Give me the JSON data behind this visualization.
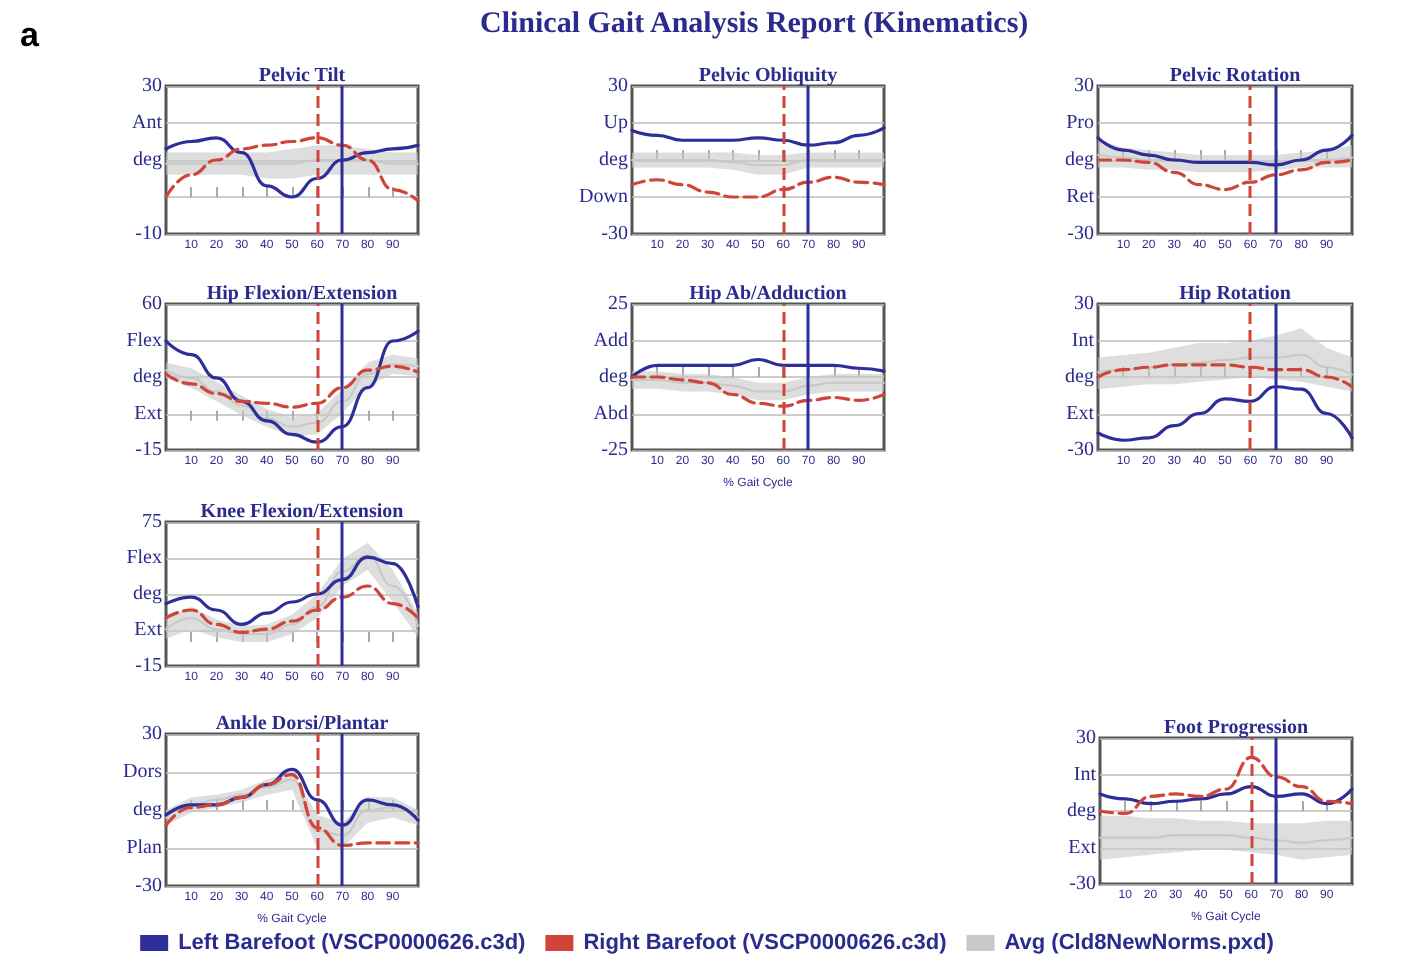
{
  "chart_data": [
    {
      "type": "line",
      "title": "Pelvic Tilt",
      "annotations": [
        "a",
        "Clinical Gait Analysis Report (Kinematics)"
      ],
      "x": [
        0,
        10,
        20,
        30,
        40,
        50,
        60,
        70,
        80,
        90,
        100
      ],
      "xlim": [
        0,
        100
      ],
      "xticks": [
        10,
        20,
        30,
        40,
        50,
        60,
        70,
        80,
        90
      ],
      "ylim": [
        -10,
        30
      ],
      "yticks": [
        -10,
        {
          "value": 0,
          "label": null
        },
        {
          "value": 10,
          "label": "deg"
        },
        {
          "value": 20,
          "label": "Ant"
        },
        30
      ],
      "grid": "y",
      "ref_lines": [
        {
          "axis": "x",
          "value": 60,
          "color": "#d0453a",
          "line_style": "dashed"
        },
        {
          "axis": "x",
          "value": 70,
          "color": "#2e2e9a",
          "line_style": "solid"
        }
      ],
      "series": [
        {
          "color": "#c8c8c8",
          "values": [
            9,
            9,
            9,
            9,
            9,
            9,
            10,
            10,
            10,
            9,
            9
          ],
          "lower": [
            6,
            6,
            6,
            6,
            5,
            5,
            6,
            6,
            6,
            6,
            6
          ],
          "upper": [
            12,
            12,
            12,
            12,
            12,
            13,
            14,
            14,
            13,
            12,
            12
          ]
        },
        {
          "color": "#2e2e9a",
          "line_style": "solid",
          "values": [
            13,
            15,
            16,
            12,
            3,
            0,
            5,
            10,
            12,
            13,
            14
          ]
        },
        {
          "color": "#d0453a",
          "line_style": "dashed",
          "values": [
            0,
            6,
            10,
            13,
            14,
            15,
            16,
            14,
            10,
            2,
            -1
          ]
        }
      ]
    },
    {
      "type": "line",
      "title": "Pelvic Obliquity",
      "x": [
        0,
        10,
        20,
        30,
        40,
        50,
        60,
        70,
        80,
        90,
        100
      ],
      "xlim": [
        0,
        100
      ],
      "xticks": [
        10,
        20,
        30,
        40,
        50,
        60,
        70,
        80,
        90
      ],
      "ylim": [
        -30,
        30
      ],
      "yticks": [
        -30,
        {
          "value": -15,
          "label": "Down"
        },
        {
          "value": 0,
          "label": "deg"
        },
        {
          "value": 15,
          "label": "Up"
        },
        30
      ],
      "grid": "y",
      "ref_lines": [
        {
          "axis": "x",
          "value": 60,
          "color": "#d0453a",
          "line_style": "dashed"
        },
        {
          "axis": "x",
          "value": 70,
          "color": "#2e2e9a",
          "line_style": "solid"
        }
      ],
      "series": [
        {
          "color": "#c8c8c8",
          "values": [
            0,
            0,
            0,
            0,
            -1,
            -2,
            -2,
            0,
            0,
            0,
            0
          ],
          "lower": [
            -3,
            -3,
            -3,
            -3,
            -4,
            -6,
            -6,
            -3,
            -3,
            -3,
            -3
          ],
          "upper": [
            3,
            3,
            3,
            3,
            3,
            2,
            2,
            3,
            3,
            3,
            3
          ]
        },
        {
          "color": "#2e2e9a",
          "line_style": "solid",
          "values": [
            12,
            10,
            8,
            8,
            8,
            9,
            8,
            6,
            7,
            10,
            13
          ]
        },
        {
          "color": "#d0453a",
          "line_style": "dashed",
          "values": [
            -10,
            -8,
            -10,
            -13,
            -15,
            -15,
            -12,
            -9,
            -7,
            -9,
            -10
          ]
        }
      ]
    },
    {
      "type": "line",
      "title": "Pelvic Rotation",
      "x": [
        0,
        10,
        20,
        30,
        40,
        50,
        60,
        70,
        80,
        90,
        100
      ],
      "xlim": [
        0,
        100
      ],
      "xticks": [
        10,
        20,
        30,
        40,
        50,
        60,
        70,
        80,
        90
      ],
      "ylim": [
        -30,
        30
      ],
      "yticks": [
        -30,
        {
          "value": -15,
          "label": "Ret"
        },
        {
          "value": 0,
          "label": "deg"
        },
        {
          "value": 15,
          "label": "Pro"
        },
        30
      ],
      "grid": "y",
      "ref_lines": [
        {
          "axis": "x",
          "value": 60,
          "color": "#d0453a",
          "line_style": "dashed"
        },
        {
          "axis": "x",
          "value": 70,
          "color": "#2e2e9a",
          "line_style": "solid"
        }
      ],
      "series": [
        {
          "color": "#c8c8c8",
          "values": [
            2,
            1,
            0,
            0,
            -1,
            -1,
            -1,
            -1,
            0,
            0,
            1
          ],
          "lower": [
            -3,
            -3,
            -4,
            -4,
            -5,
            -5,
            -5,
            -4,
            -3,
            -3,
            -3
          ],
          "upper": [
            8,
            5,
            4,
            3,
            2,
            2,
            2,
            2,
            3,
            4,
            6
          ]
        },
        {
          "color": "#2e2e9a",
          "line_style": "solid",
          "values": [
            9,
            4,
            2,
            0,
            -1,
            -1,
            -1,
            -2,
            0,
            4,
            10
          ]
        },
        {
          "color": "#d0453a",
          "line_style": "dashed",
          "values": [
            0,
            0,
            -1,
            -5,
            -10,
            -12,
            -9,
            -6,
            -4,
            -1,
            0
          ]
        }
      ]
    },
    {
      "type": "line",
      "title": "Hip Flexion/Extension",
      "x": [
        0,
        10,
        20,
        30,
        40,
        50,
        60,
        70,
        80,
        90,
        100
      ],
      "xlim": [
        0,
        100
      ],
      "xticks": [
        10,
        20,
        30,
        40,
        50,
        60,
        70,
        80,
        90
      ],
      "ylim": [
        -15,
        60
      ],
      "yticks": [
        -15,
        {
          "value": 3.75,
          "label": "Ext"
        },
        {
          "value": 22.5,
          "label": "deg"
        },
        {
          "value": 41.25,
          "label": "Flex"
        },
        60
      ],
      "grid": "y",
      "ref_lines": [
        {
          "axis": "x",
          "value": 60,
          "color": "#d0453a",
          "line_style": "dashed"
        },
        {
          "axis": "x",
          "value": 70,
          "color": "#2e2e9a",
          "line_style": "solid"
        }
      ],
      "series": [
        {
          "color": "#c8c8c8",
          "values": [
            26,
            22,
            15,
            8,
            1,
            -3,
            -1,
            10,
            24,
            29,
            28
          ],
          "lower": [
            22,
            17,
            10,
            3,
            -3,
            -8,
            -7,
            4,
            18,
            24,
            23
          ],
          "upper": [
            30,
            27,
            20,
            13,
            6,
            2,
            4,
            16,
            30,
            34,
            32
          ]
        },
        {
          "color": "#2e2e9a",
          "line_style": "solid",
          "values": [
            41,
            34,
            22,
            10,
            0,
            -7,
            -11,
            -3,
            17,
            41,
            46
          ]
        },
        {
          "color": "#d0453a",
          "line_style": "dashed",
          "values": [
            24,
            19,
            14,
            10,
            9,
            7,
            9,
            17,
            26,
            28,
            25
          ]
        }
      ]
    },
    {
      "type": "line",
      "title": "Hip Ab/Adduction",
      "xlabel": "% Gait Cycle",
      "x": [
        0,
        10,
        20,
        30,
        40,
        50,
        60,
        70,
        80,
        90,
        100
      ],
      "xlim": [
        0,
        100
      ],
      "xticks": [
        10,
        20,
        30,
        40,
        50,
        60,
        70,
        80,
        90
      ],
      "ylim": [
        -25,
        25
      ],
      "yticks": [
        -25,
        {
          "value": -12.5,
          "label": "Abd"
        },
        {
          "value": 0,
          "label": "deg"
        },
        {
          "value": 12.5,
          "label": "Add"
        },
        25
      ],
      "grid": "y",
      "ref_lines": [
        {
          "axis": "x",
          "value": 60,
          "color": "#d0453a",
          "line_style": "dashed"
        },
        {
          "axis": "x",
          "value": 70,
          "color": "#2e2e9a",
          "line_style": "solid"
        }
      ],
      "series": [
        {
          "color": "#c8c8c8",
          "values": [
            -1,
            -1,
            -2,
            -2,
            -3,
            -5,
            -5,
            -3,
            -2,
            -2,
            -2
          ],
          "lower": [
            -4,
            -4,
            -5,
            -5,
            -6,
            -8,
            -8,
            -6,
            -5,
            -5,
            -5
          ],
          "upper": [
            2,
            2,
            1,
            1,
            0,
            -2,
            -2,
            0,
            1,
            1,
            1
          ]
        },
        {
          "color": "#2e2e9a",
          "line_style": "solid",
          "values": [
            0,
            4,
            4,
            4,
            4,
            6,
            4,
            4,
            4,
            3,
            2
          ]
        },
        {
          "color": "#d0453a",
          "line_style": "dashed",
          "values": [
            0,
            0,
            -1,
            -2,
            -6,
            -9,
            -10,
            -8,
            -7,
            -8,
            -6
          ]
        }
      ]
    },
    {
      "type": "line",
      "title": "Hip Rotation",
      "x": [
        0,
        10,
        20,
        30,
        40,
        50,
        60,
        70,
        80,
        90,
        100
      ],
      "xlim": [
        0,
        100
      ],
      "xticks": [
        10,
        20,
        30,
        40,
        50,
        60,
        70,
        80,
        90
      ],
      "ylim": [
        -30,
        30
      ],
      "yticks": [
        -30,
        {
          "value": -15,
          "label": "Ext"
        },
        {
          "value": 0,
          "label": "deg"
        },
        {
          "value": 15,
          "label": "Int"
        },
        30
      ],
      "grid": "y",
      "ref_lines": [
        {
          "axis": "x",
          "value": 60,
          "color": "#d0453a",
          "line_style": "dashed"
        },
        {
          "axis": "x",
          "value": 70,
          "color": "#2e2e9a",
          "line_style": "solid"
        }
      ],
      "series": [
        {
          "color": "#c8c8c8",
          "values": [
            2,
            3,
            4,
            5,
            6,
            7,
            8,
            8,
            9,
            4,
            1
          ],
          "lower": [
            -5,
            -4,
            -3,
            -3,
            -2,
            -1,
            0,
            -1,
            -2,
            -4,
            -6
          ],
          "upper": [
            8,
            9,
            10,
            12,
            14,
            14,
            15,
            17,
            20,
            12,
            8
          ]
        },
        {
          "color": "#2e2e9a",
          "line_style": "solid",
          "values": [
            -23,
            -26,
            -25,
            -20,
            -15,
            -9,
            -10,
            -4,
            -5,
            -15,
            -25
          ]
        },
        {
          "color": "#d0453a",
          "line_style": "dashed",
          "values": [
            0,
            3,
            4,
            5,
            5,
            5,
            4,
            3,
            3,
            0,
            -4
          ]
        }
      ]
    },
    {
      "type": "line",
      "title": "Knee Flexion/Extension",
      "x": [
        0,
        10,
        20,
        30,
        40,
        50,
        60,
        70,
        80,
        90,
        100
      ],
      "xlim": [
        0,
        100
      ],
      "xticks": [
        10,
        20,
        30,
        40,
        50,
        60,
        70,
        80,
        90
      ],
      "ylim": [
        -15,
        75
      ],
      "yticks": [
        -15,
        {
          "value": 7.5,
          "label": "Ext"
        },
        {
          "value": 30,
          "label": "deg"
        },
        {
          "value": 52.5,
          "label": "Flex"
        },
        75
      ],
      "grid": "y",
      "ref_lines": [
        {
          "axis": "x",
          "value": 60,
          "color": "#d0453a",
          "line_style": "dashed"
        },
        {
          "axis": "x",
          "value": 70,
          "color": "#2e2e9a",
          "line_style": "solid"
        }
      ],
      "series": [
        {
          "color": "#c8c8c8",
          "values": [
            8,
            15,
            8,
            5,
            5,
            11,
            22,
            44,
            54,
            35,
            10
          ],
          "lower": [
            2,
            8,
            3,
            0,
            0,
            5,
            15,
            35,
            45,
            25,
            3
          ],
          "upper": [
            15,
            22,
            14,
            10,
            11,
            17,
            30,
            52,
            62,
            45,
            18
          ]
        },
        {
          "color": "#2e2e9a",
          "line_style": "solid",
          "values": [
            24,
            28,
            20,
            11,
            18,
            25,
            30,
            39,
            53,
            49,
            22
          ]
        },
        {
          "color": "#d0453a",
          "line_style": "dashed",
          "values": [
            15,
            20,
            11,
            6,
            8,
            13,
            20,
            28,
            35,
            24,
            15
          ]
        }
      ]
    },
    {
      "type": "line",
      "title": "Ankle Dorsi/Plantar",
      "xlabel": "% Gait Cycle",
      "x": [
        0,
        10,
        20,
        30,
        40,
        50,
        60,
        70,
        80,
        90,
        100
      ],
      "xlim": [
        0,
        100
      ],
      "xticks": [
        10,
        20,
        30,
        40,
        50,
        60,
        70,
        80,
        90
      ],
      "ylim": [
        -30,
        30
      ],
      "yticks": [
        -30,
        {
          "value": -15,
          "label": "Plan"
        },
        {
          "value": 0,
          "label": "deg"
        },
        {
          "value": 15,
          "label": "Dors"
        },
        30
      ],
      "grid": "y",
      "ref_lines": [
        {
          "axis": "x",
          "value": 60,
          "color": "#d0453a",
          "line_style": "dashed"
        },
        {
          "axis": "x",
          "value": 70,
          "color": "#2e2e9a",
          "line_style": "solid"
        }
      ],
      "series": [
        {
          "color": "#c8c8c8",
          "values": [
            -3,
            2,
            4,
            6,
            9,
            12,
            -8,
            -10,
            0,
            1,
            -3
          ],
          "lower": [
            -6,
            -1,
            1,
            3,
            6,
            8,
            -15,
            -15,
            -5,
            -3,
            -6
          ],
          "upper": [
            0,
            5,
            6,
            8,
            12,
            15,
            -2,
            -5,
            5,
            5,
            0
          ]
        },
        {
          "color": "#2e2e9a",
          "line_style": "solid",
          "values": [
            -2,
            2,
            2,
            5,
            10,
            16,
            4,
            -6,
            4,
            2,
            -4
          ]
        },
        {
          "color": "#d0453a",
          "line_style": "dashed",
          "values": [
            -6,
            1,
            2,
            5,
            10,
            14,
            -7,
            -14,
            -13,
            -13,
            -13
          ]
        }
      ]
    },
    {
      "type": "line",
      "title": "Foot Progression",
      "xlabel": "% Gait Cycle",
      "x": [
        0,
        10,
        20,
        30,
        40,
        50,
        60,
        70,
        80,
        90,
        100
      ],
      "xlim": [
        0,
        100
      ],
      "xticks": [
        10,
        20,
        30,
        40,
        50,
        60,
        70,
        80,
        90
      ],
      "ylim": [
        -30,
        30
      ],
      "yticks": [
        -30,
        {
          "value": -15,
          "label": "Ext"
        },
        {
          "value": 0,
          "label": "deg"
        },
        {
          "value": 15,
          "label": "Int"
        },
        30
      ],
      "grid": "y",
      "legend": "bottom",
      "ref_lines": [
        {
          "axis": "x",
          "value": 60,
          "color": "#d0453a",
          "line_style": "dashed"
        },
        {
          "axis": "x",
          "value": 70,
          "color": "#2e2e9a",
          "line_style": "solid"
        }
      ],
      "series": [
        {
          "name": "Left Barefoot (VSCP0000626.c3d)",
          "color": "#2e2e9a",
          "line_style": "solid",
          "values": [
            7,
            5,
            3,
            4,
            5,
            7,
            10,
            6,
            7,
            3,
            9
          ]
        },
        {
          "name": "Right Barefoot (VSCP0000626.c3d)",
          "color": "#d0453a",
          "line_style": "dashed",
          "values": [
            0,
            -1,
            6,
            7,
            6,
            9,
            22,
            14,
            10,
            4,
            3
          ]
        },
        {
          "name": "Avg (Cld8NewNorms.pxd)",
          "color": "#c8c8c8",
          "values": [
            -11,
            -11,
            -11,
            -10,
            -10,
            -10,
            -11,
            -12,
            -13,
            -12,
            -11
          ],
          "lower": [
            -20,
            -19,
            -18,
            -17,
            -16,
            -16,
            -17,
            -18,
            -20,
            -19,
            -18
          ],
          "upper": [
            -2,
            -2,
            -3,
            -3,
            -4,
            -4,
            -5,
            -5,
            -5,
            -4,
            -4
          ]
        }
      ]
    }
  ]
}
